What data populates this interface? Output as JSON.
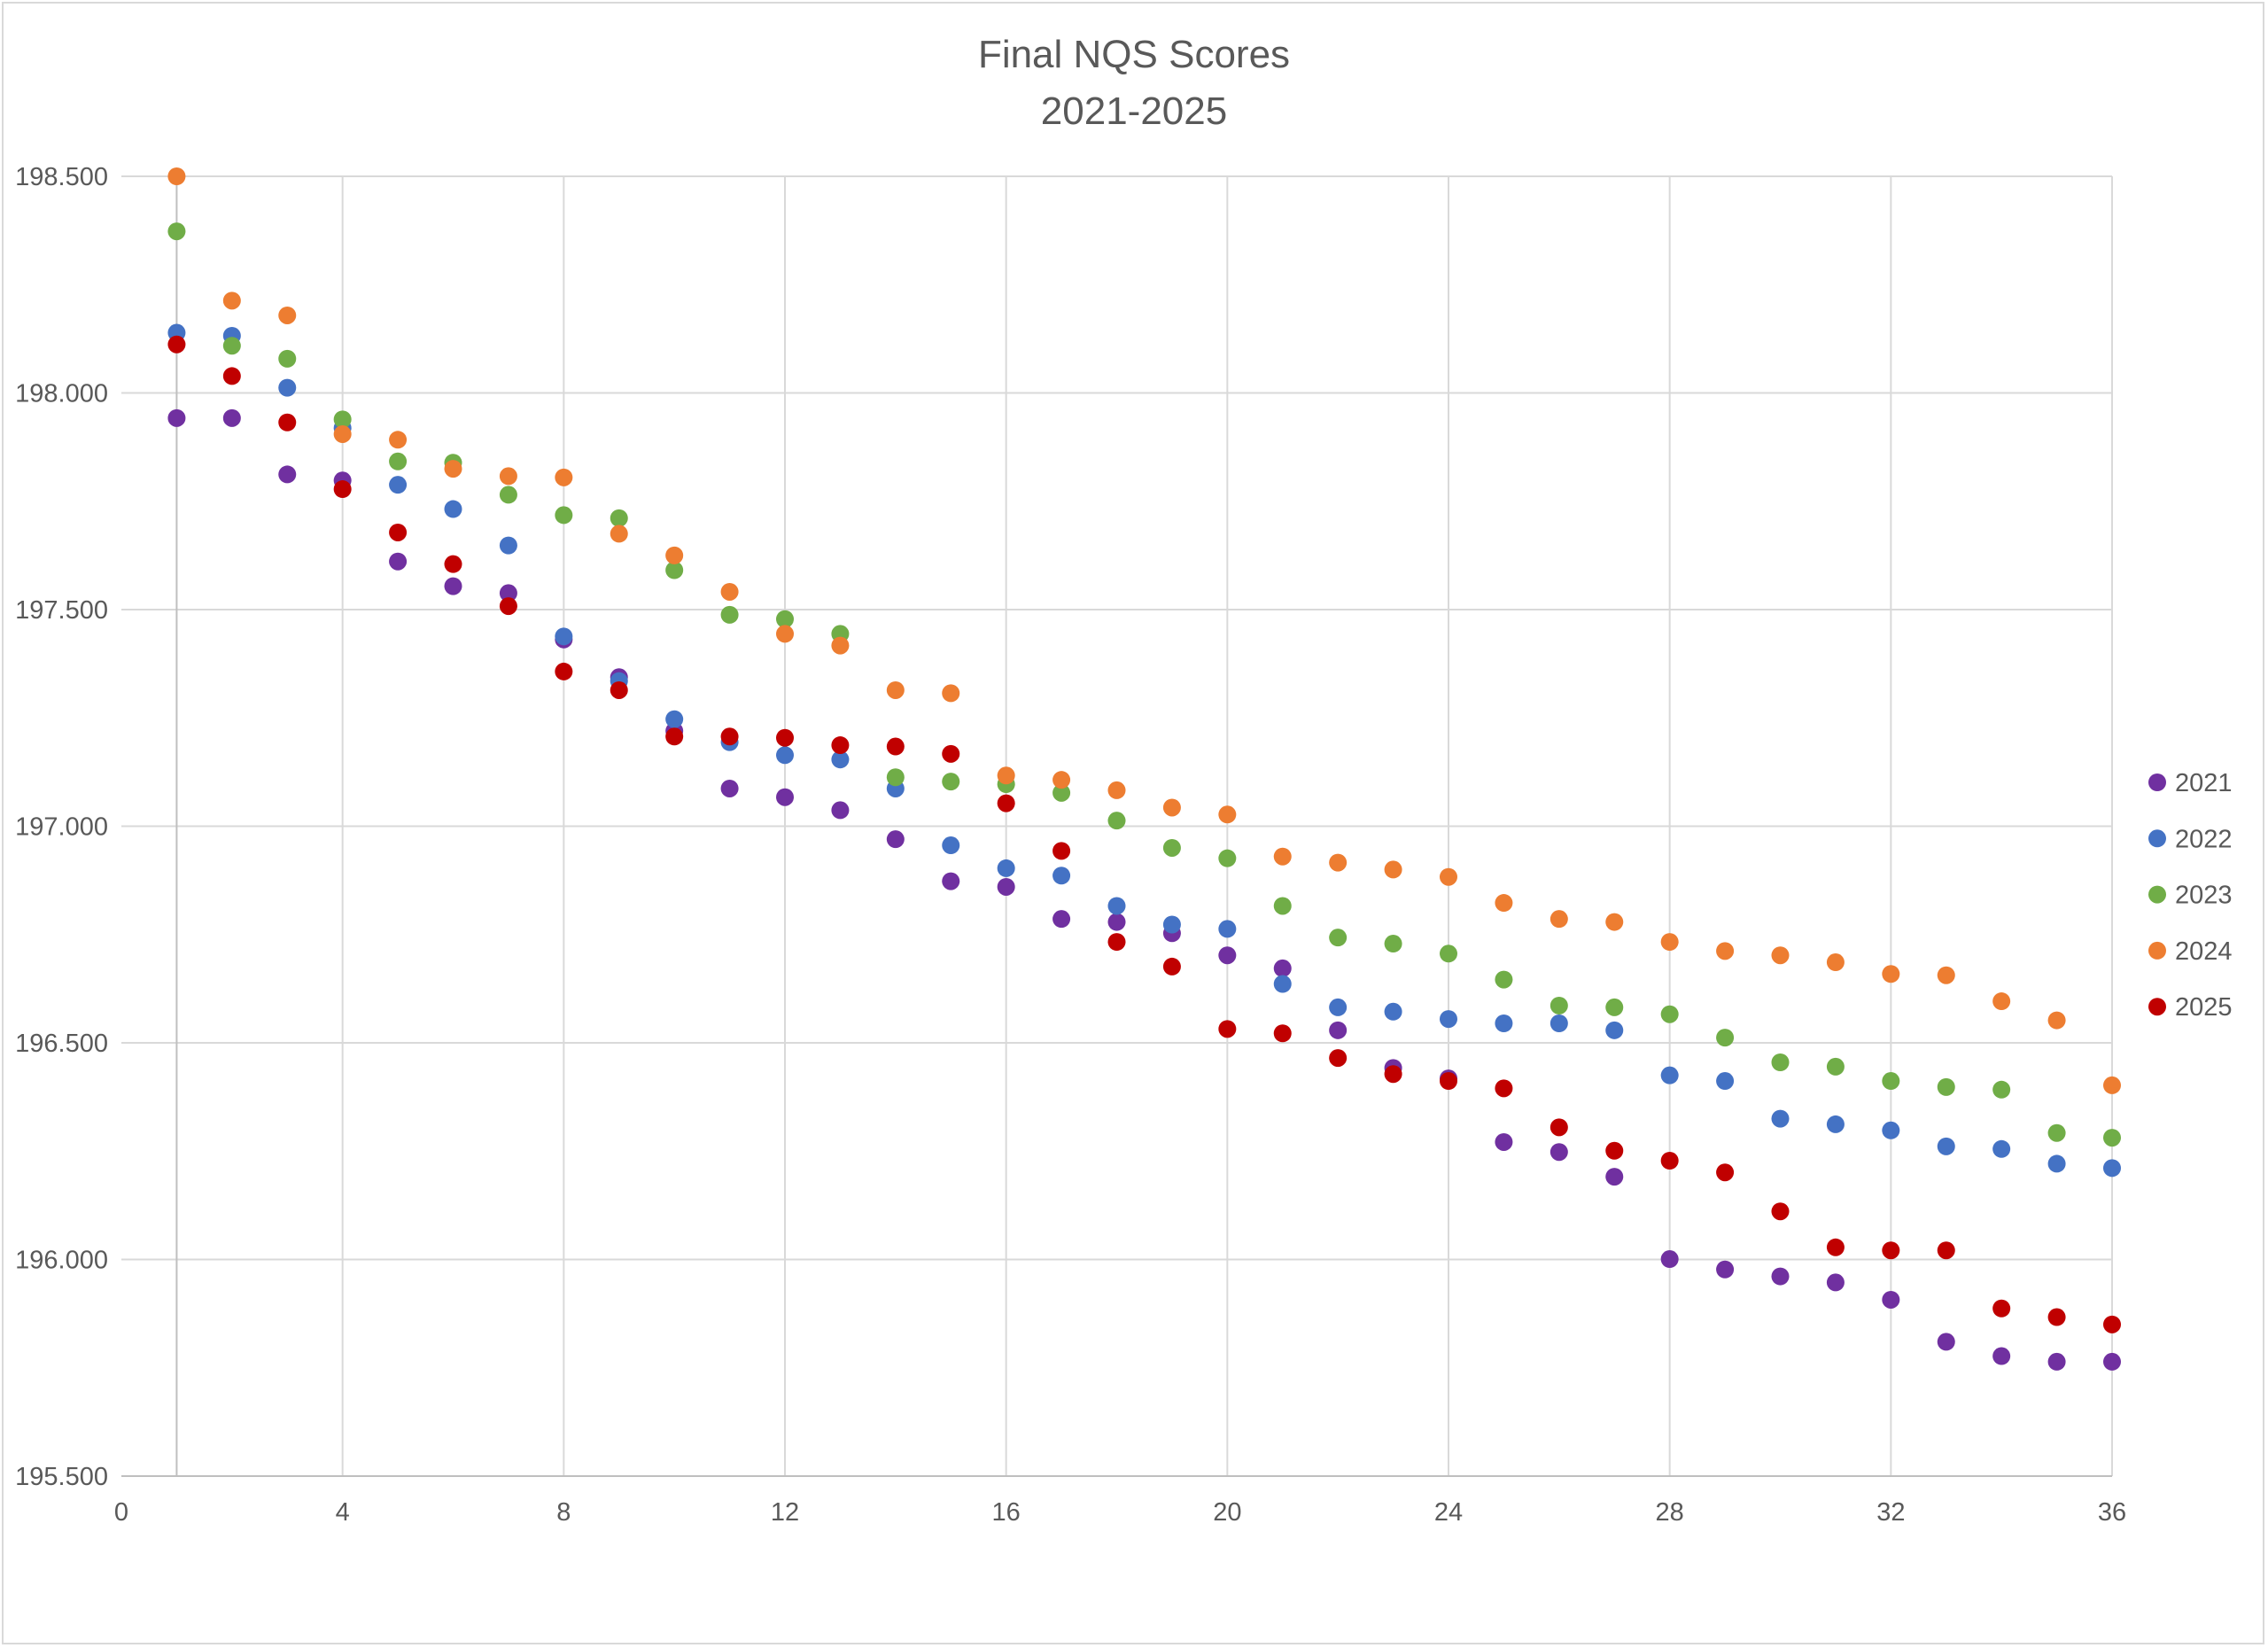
{
  "chart_data": {
    "type": "scatter",
    "title": "Final NQS Scores",
    "subtitle": "2021-2025",
    "xlabel": "",
    "ylabel": "",
    "xlim": [
      0,
      36
    ],
    "ylim": [
      195.5,
      198.5
    ],
    "xticks": [
      0,
      4,
      8,
      12,
      16,
      20,
      24,
      28,
      32,
      36
    ],
    "yticks": [
      "195.500",
      "196.000",
      "196.500",
      "197.000",
      "197.500",
      "198.000",
      "198.500"
    ],
    "grid": true,
    "legend_position": "right",
    "x": [
      1,
      2,
      3,
      4,
      5,
      6,
      7,
      8,
      9,
      10,
      11,
      12,
      13,
      14,
      15,
      16,
      17,
      18,
      19,
      20,
      21,
      22,
      23,
      24,
      25,
      26,
      27,
      28,
      29,
      30,
      31,
      32,
      33,
      34,
      35,
      36
    ],
    "series": [
      {
        "name": "2021",
        "color": "#7030A0",
        "values": [
          197.942,
          197.942,
          197.812,
          197.798,
          197.611,
          197.554,
          197.538,
          197.431,
          197.344,
          197.22,
          197.087,
          197.067,
          197.037,
          196.97,
          196.873,
          196.86,
          196.786,
          196.779,
          196.753,
          196.702,
          196.672,
          196.529,
          196.442,
          196.418,
          196.271,
          196.248,
          196.191,
          196.001,
          195.977,
          195.961,
          195.947,
          195.907,
          195.81,
          195.777,
          195.764,
          195.764
        ]
      },
      {
        "name": "2022",
        "color": "#4472C4",
        "values": [
          198.139,
          198.132,
          198.012,
          197.919,
          197.788,
          197.732,
          197.648,
          197.438,
          197.335,
          197.247,
          197.194,
          197.164,
          197.154,
          197.087,
          196.956,
          196.903,
          196.886,
          196.816,
          196.773,
          196.763,
          196.636,
          196.582,
          196.572,
          196.555,
          196.545,
          196.545,
          196.529,
          196.425,
          196.412,
          196.325,
          196.312,
          196.298,
          196.261,
          196.255,
          196.221,
          196.211
        ]
      },
      {
        "name": "2023",
        "color": "#70AD47",
        "values": [
          198.373,
          198.109,
          198.079,
          197.939,
          197.842,
          197.839,
          197.765,
          197.718,
          197.711,
          197.591,
          197.488,
          197.478,
          197.444,
          197.113,
          197.103,
          197.097,
          197.077,
          197.013,
          196.95,
          196.926,
          196.816,
          196.743,
          196.729,
          196.706,
          196.646,
          196.586,
          196.582,
          196.566,
          196.512,
          196.455,
          196.445,
          196.412,
          196.398,
          196.392,
          196.292,
          196.281
        ]
      },
      {
        "name": "2024",
        "color": "#ED7D31",
        "values": [
          198.5,
          198.213,
          198.179,
          197.905,
          197.892,
          197.825,
          197.808,
          197.805,
          197.675,
          197.625,
          197.541,
          197.444,
          197.417,
          197.314,
          197.307,
          197.117,
          197.107,
          197.083,
          197.043,
          197.027,
          196.93,
          196.916,
          196.9,
          196.883,
          196.823,
          196.786,
          196.779,
          196.733,
          196.712,
          196.702,
          196.686,
          196.659,
          196.656,
          196.596,
          196.552,
          196.402
        ]
      },
      {
        "name": "2025",
        "color": "#C00000",
        "values": [
          198.112,
          198.039,
          197.932,
          197.778,
          197.678,
          197.605,
          197.508,
          197.357,
          197.314,
          197.207,
          197.207,
          197.204,
          197.187,
          197.184,
          197.167,
          197.053,
          196.943,
          196.733,
          196.676,
          196.532,
          196.522,
          196.465,
          196.428,
          196.412,
          196.395,
          196.305,
          196.251,
          196.228,
          196.201,
          196.111,
          196.028,
          196.021,
          196.021,
          195.887,
          195.867,
          195.85
        ]
      }
    ]
  }
}
